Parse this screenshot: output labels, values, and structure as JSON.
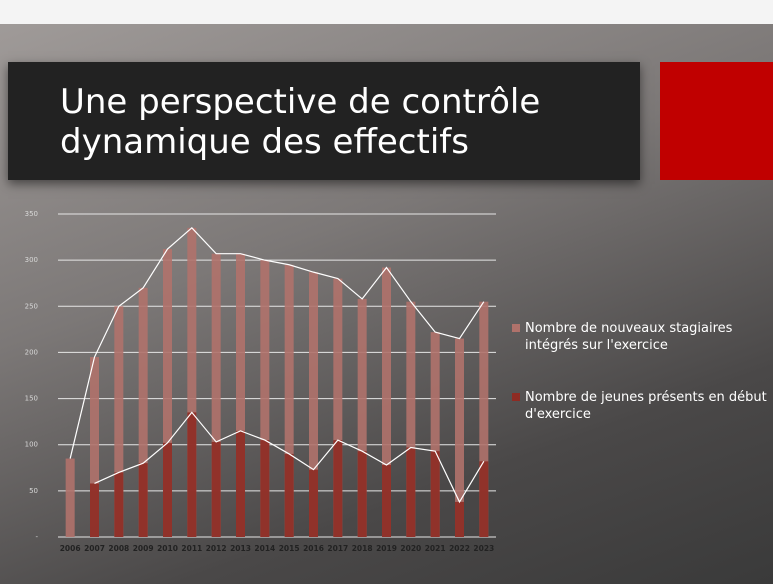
{
  "title": "Une perspective de contrôle dynamique des effectifs",
  "chart_data": {
    "type": "bar",
    "categories": [
      "2006",
      "2007",
      "2008",
      "2009",
      "2010",
      "2011",
      "2012",
      "2013",
      "2014",
      "2015",
      "2016",
      "2017",
      "2018",
      "2019",
      "2020",
      "2021",
      "2022",
      "2023"
    ],
    "series": [
      {
        "name": "Nombre de nouveaux stagiaires intégrés sur l'exercice",
        "color": "#b0726b",
        "values": [
          85,
          195,
          250,
          270,
          312,
          335,
          307,
          307,
          300,
          295,
          287,
          280,
          258,
          292,
          255,
          222,
          215,
          255
        ]
      },
      {
        "name": "Nombre de jeunes présents en début d'exercice",
        "color": "#8e2b23",
        "values": [
          null,
          58,
          70,
          80,
          102,
          135,
          103,
          115,
          105,
          90,
          73,
          105,
          93,
          78,
          97,
          93,
          38,
          82
        ]
      }
    ],
    "line_color": "#ffffff",
    "ylim": [
      0,
      350
    ],
    "yticks": [
      {
        "value": 0,
        "label": "-"
      },
      50,
      100,
      150,
      200,
      250,
      300,
      350
    ],
    "grid": true,
    "legend": "right"
  }
}
